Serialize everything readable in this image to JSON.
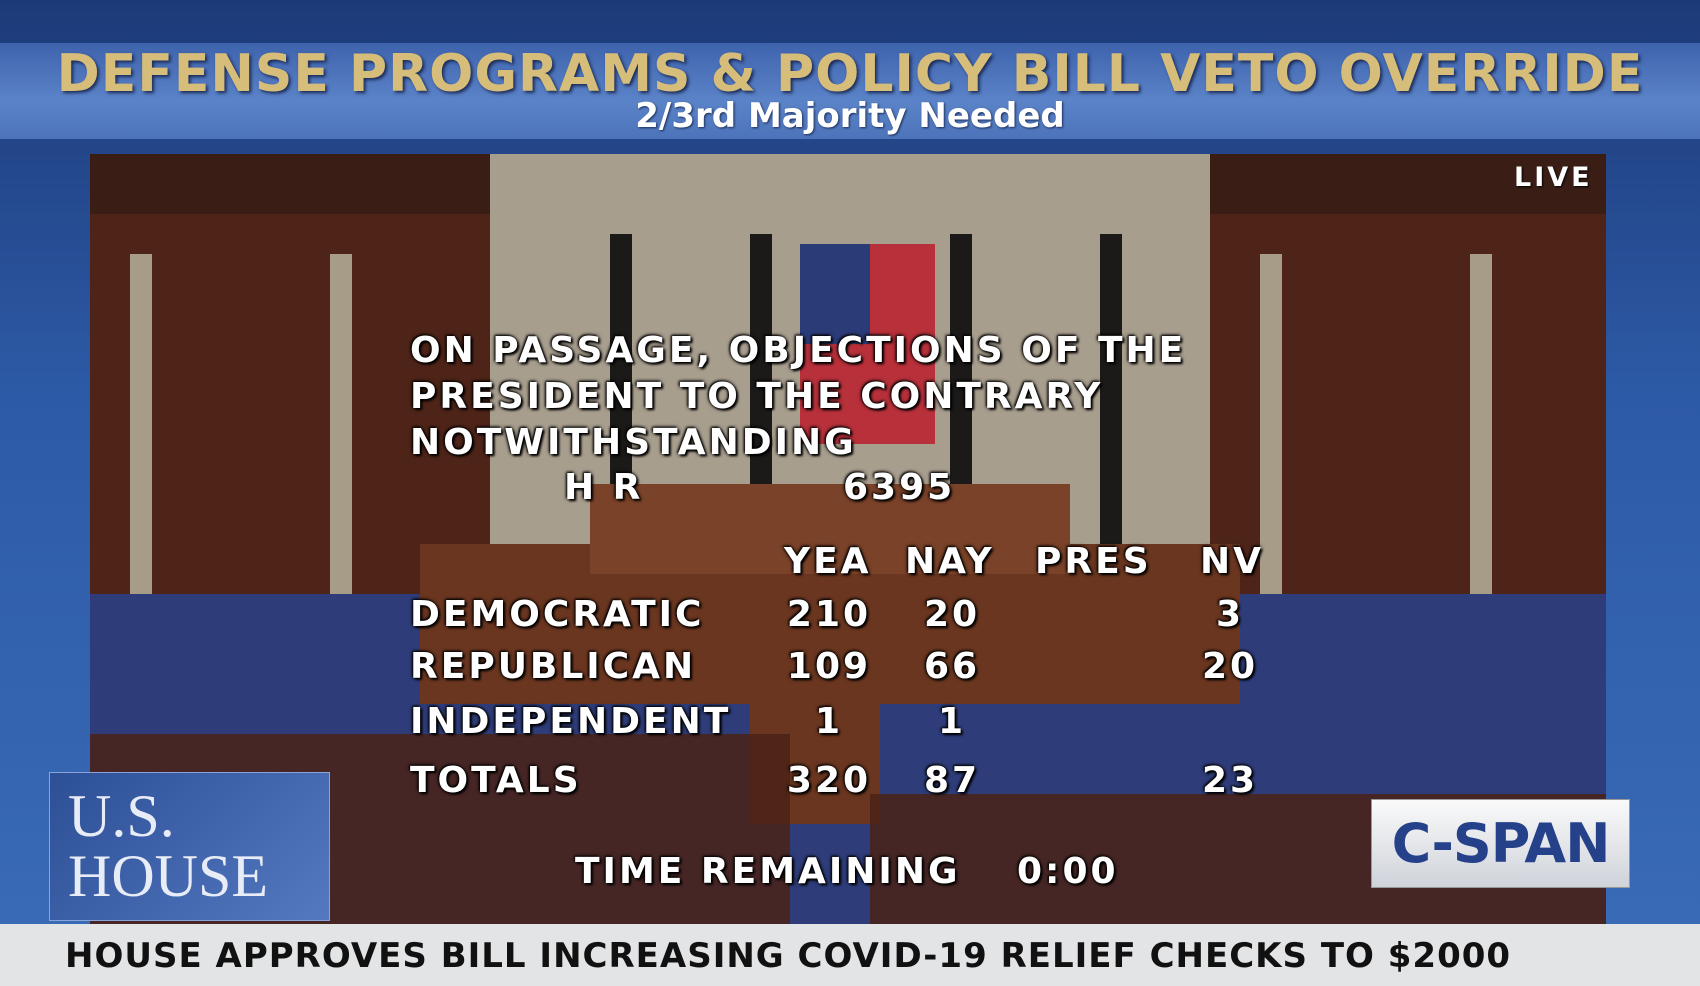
{
  "header": {
    "title": "DEFENSE PROGRAMS & POLICY BILL VETO OVERRIDE",
    "subtitle": "2/3rd Majority Needed"
  },
  "live": "LIVE",
  "vote_board": {
    "question": [
      "ON PASSAGE, OBJECTIONS OF THE",
      "PRESIDENT TO THE CONTRARY",
      "NOTWITHSTANDING"
    ],
    "bill_label": "H R",
    "bill_number": "6395",
    "columns": [
      "YEA",
      "NAY",
      "PRES",
      "NV"
    ],
    "rows": [
      {
        "party": "DEMOCRATIC",
        "yea": 210,
        "nay": 20,
        "nv": 3
      },
      {
        "party": "REPUBLICAN",
        "yea": 109,
        "nay": 66,
        "nv": 20
      },
      {
        "party": "INDEPENDENT",
        "yea": 1,
        "nay": 1
      },
      {
        "party": "TOTALS",
        "yea": 320,
        "nay": 87,
        "nv": 23
      }
    ],
    "time_label": "TIME REMAINING",
    "time_value": "0:00"
  },
  "logo": {
    "line1": "U.S.",
    "line2": "HOUSE"
  },
  "network": "C-SPAN",
  "ticker": "HOUSE APPROVES BILL INCREASING COVID-19 RELIEF CHECKS TO $2000"
}
